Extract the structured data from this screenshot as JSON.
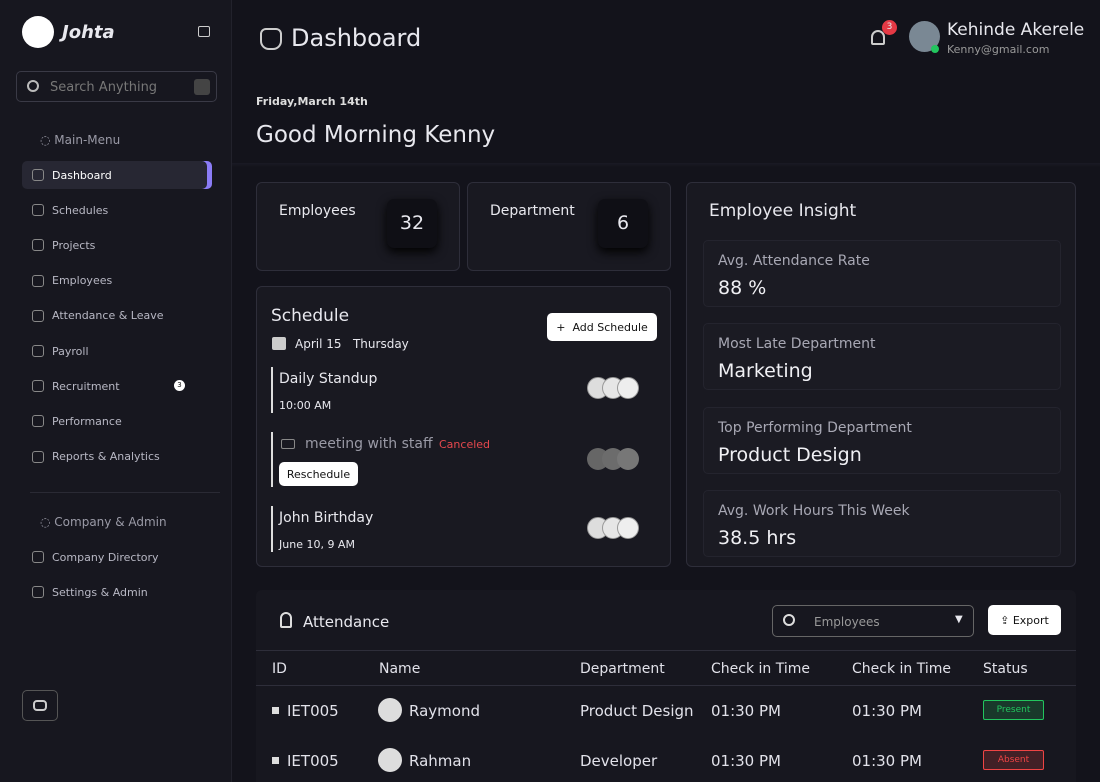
{
  "sidebar": {
    "brand": "Johta",
    "search_placeholder": "Search Anything",
    "main_menu_label": "Main-Menu",
    "main_menu": [
      "Dashboard",
      "Schedules",
      "Projects",
      "Employees",
      "Attendance & Leave",
      "Payroll",
      "Recruitment",
      "Performance",
      "Reports & Analytics"
    ],
    "recruitment_badge": "3",
    "company_label": "Company & Admin",
    "company_menu": [
      "Company Directory",
      "Settings & Admin"
    ]
  },
  "header": {
    "title": "Dashboard",
    "notifications": "3",
    "user_name": "Kehinde Akerele",
    "user_email": "Kenny@gmail.com"
  },
  "greeting": {
    "date": "Friday,March 14th",
    "text": "Good Morning Kenny"
  },
  "stats": [
    {
      "label": "Employees",
      "value": "32"
    },
    {
      "label": "Department",
      "value": "6"
    }
  ],
  "schedule": {
    "title": "Schedule",
    "add_button": "Add Schedule",
    "date": "April 15",
    "day": "Thursday",
    "events": [
      {
        "title": "Daily Standup",
        "time": "10:00 AM"
      },
      {
        "title": "meeting with staff",
        "status": "Canceled",
        "action": "Reschedule"
      },
      {
        "title": "John Birthday",
        "time": "June 10, 9 AM"
      }
    ]
  },
  "insight": {
    "title": "Employee Insight",
    "items": [
      {
        "label": "Avg. Attendance Rate",
        "value": "88 %"
      },
      {
        "label": "Most Late Department",
        "value": "Marketing"
      },
      {
        "label": "Top Performing Department",
        "value": "Product Design"
      },
      {
        "label": "Avg. Work Hours This Week",
        "value": "38.5 hrs"
      }
    ]
  },
  "attendance": {
    "title": "Attendance",
    "filter": "Employees",
    "export": "Export",
    "columns": [
      "ID",
      "Name",
      "Department",
      "Check in Time",
      "Check in Time",
      "Status"
    ],
    "rows": [
      {
        "cells": [
          "IET005",
          "Raymond",
          "Product Design",
          "01:30 PM",
          "01:30 PM",
          "Present"
        ],
        "status_color": "#22c55e"
      },
      {
        "cells": [
          "IET005",
          "Rahman",
          "Developer",
          "01:30 PM",
          "01:30 PM",
          "Absent"
        ],
        "status_color": "#ef4444"
      }
    ]
  }
}
